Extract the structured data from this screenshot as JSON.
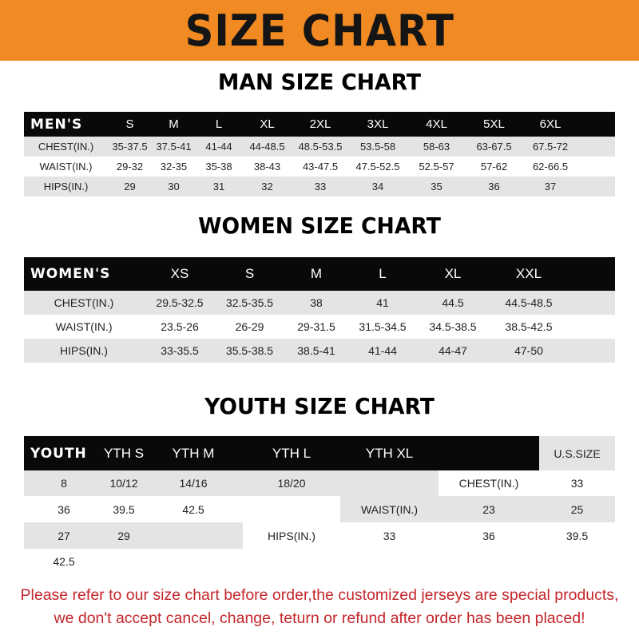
{
  "banner": {
    "title": "SIZE CHART",
    "color": "#f18a22"
  },
  "men": {
    "title": "MAN SIZE CHART",
    "header": [
      "MEN'S",
      "S",
      "M",
      "L",
      "XL",
      "2XL",
      "3XL",
      "4XL",
      "5XL",
      "6XL"
    ],
    "rows": [
      [
        "CHEST(IN.)",
        "35-37.5",
        "37.5-41",
        "41-44",
        "44-48.5",
        "48.5-53.5",
        "53.5-58",
        "58-63",
        "63-67.5",
        "67.5-72"
      ],
      [
        "WAIST(IN.)",
        "29-32",
        "32-35",
        "35-38",
        "38-43",
        "43-47.5",
        "47.5-52.5",
        "52.5-57",
        "57-62",
        "62-66.5"
      ],
      [
        "HIPS(IN.)",
        "29",
        "30",
        "31",
        "32",
        "33",
        "34",
        "35",
        "36",
        "37"
      ]
    ]
  },
  "women": {
    "title": "WOMEN SIZE CHART",
    "header": [
      "WOMEN'S",
      "XS",
      "S",
      "M",
      "L",
      "XL",
      "XXL"
    ],
    "rows": [
      [
        "CHEST(IN.)",
        "29.5-32.5",
        "32.5-35.5",
        "38",
        "41",
        "44.5",
        "44.5-48.5"
      ],
      [
        "WAIST(IN.)",
        "23.5-26",
        "26-29",
        "29-31.5",
        "31.5-34.5",
        "34.5-38.5",
        "38.5-42.5"
      ],
      [
        "HIPS(IN.)",
        "33-35.5",
        "35.5-38.5",
        "38.5-41",
        "41-44",
        "44-47",
        "47-50"
      ]
    ]
  },
  "youth": {
    "title": "YOUTH SIZE CHART",
    "header": [
      "YOUTH",
      "YTH S",
      "YTH M",
      "YTH L",
      "YTH XL"
    ],
    "rows": [
      [
        "U.S.SIZE",
        "8",
        "10/12",
        "14/16",
        "18/20"
      ],
      [
        "CHEST(IN.)",
        "33",
        "36",
        "39.5",
        "42.5"
      ],
      [
        "WAIST(IN.)",
        "23",
        "25",
        "27",
        "29"
      ],
      [
        "HIPS(IN.)",
        "33",
        "36",
        "39.5",
        "42.5"
      ]
    ]
  },
  "notice": {
    "line1": "Please refer to our size chart before order,the customized jerseys are special products,",
    "line2": "we don't accept cancel, change, teturn or refund after order has been placed!",
    "color": "#c4262b"
  }
}
